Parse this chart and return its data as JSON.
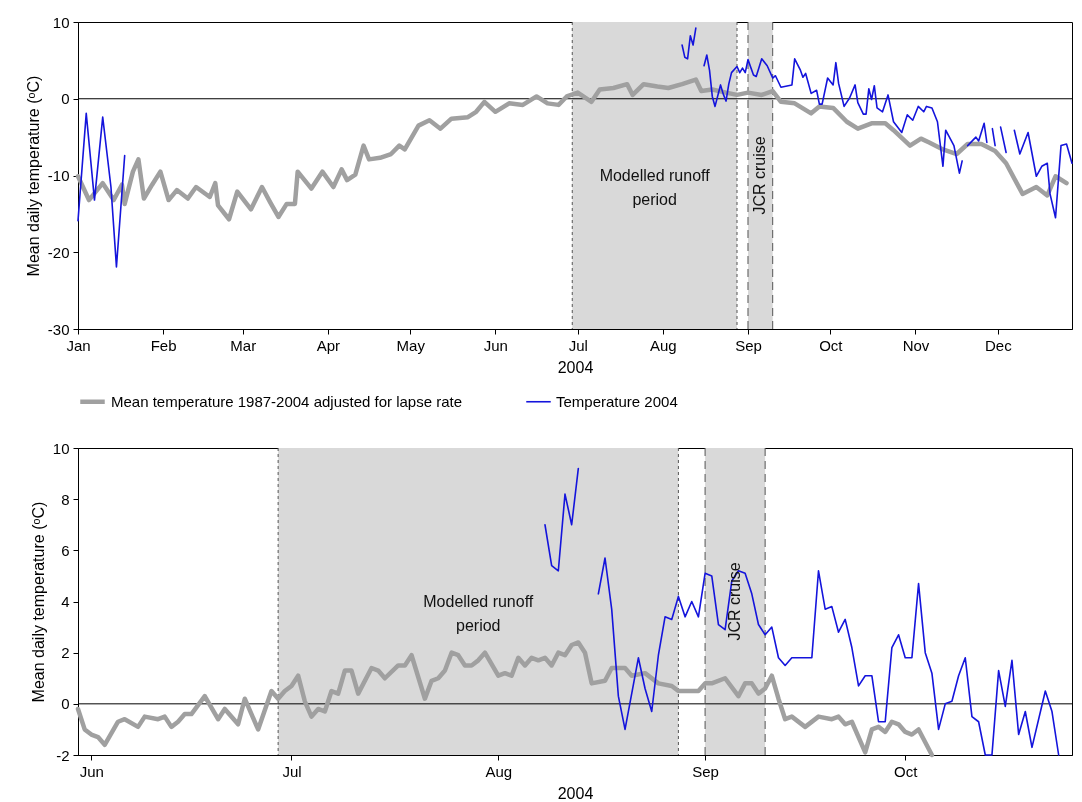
{
  "chart_data": [
    {
      "type": "line",
      "xlabel": "2004",
      "ylabel": "Mean daily temperature (ᵒC)",
      "xlim": [
        "2004-01-01",
        "2004-12-28"
      ],
      "ylim": [
        -30,
        10
      ],
      "yticks": [
        -30,
        -20,
        -10,
        0,
        10
      ],
      "xticks": [
        {
          "value": "2004-01-01",
          "label": "Jan"
        },
        {
          "value": "2004-02-01",
          "label": "Feb"
        },
        {
          "value": "2004-03-01",
          "label": "Mar"
        },
        {
          "value": "2004-04-01",
          "label": "Apr"
        },
        {
          "value": "2004-05-01",
          "label": "May"
        },
        {
          "value": "2004-06-01",
          "label": "Jun"
        },
        {
          "value": "2004-07-01",
          "label": "Jul"
        },
        {
          "value": "2004-08-01",
          "label": "Aug"
        },
        {
          "value": "2004-09-01",
          "label": "Sep"
        },
        {
          "value": "2004-10-01",
          "label": "Oct"
        },
        {
          "value": "2004-11-01",
          "label": "Nov"
        },
        {
          "value": "2004-12-01",
          "label": "Dec"
        }
      ],
      "legend": "bottom",
      "grid": false,
      "marker": "none",
      "line_style": "solid",
      "series": [
        {
          "name": "Mean temperature 1987-2004 adjusted for lapse rate",
          "color": "#a0a0a0",
          "x": [
            "2004-01-01",
            "2004-01-05",
            "2004-01-10",
            "2004-01-14",
            "2004-01-17",
            "2004-01-18",
            "2004-01-21",
            "2004-01-23",
            "2004-01-25",
            "2004-01-28",
            "2004-01-31",
            "2004-02-03",
            "2004-02-06",
            "2004-02-10",
            "2004-02-13",
            "2004-02-18",
            "2004-02-20",
            "2004-02-21",
            "2004-02-25",
            "2004-02-28",
            "2004-03-04",
            "2004-03-08",
            "2004-03-11",
            "2004-03-14",
            "2004-03-17",
            "2004-03-20",
            "2004-03-21",
            "2004-03-26",
            "2004-03-30",
            "2004-04-03",
            "2004-04-06",
            "2004-04-08",
            "2004-04-11",
            "2004-04-14",
            "2004-04-16",
            "2004-04-20",
            "2004-04-24",
            "2004-04-27",
            "2004-04-29",
            "2004-05-04",
            "2004-05-08",
            "2004-05-12",
            "2004-05-16",
            "2004-05-22",
            "2004-05-25",
            "2004-05-28",
            "2004-06-01",
            "2004-06-06",
            "2004-06-11",
            "2004-06-16",
            "2004-06-20",
            "2004-06-24",
            "2004-06-27",
            "2004-07-01",
            "2004-07-06",
            "2004-07-09",
            "2004-07-14",
            "2004-07-19",
            "2004-07-21",
            "2004-07-25",
            "2004-07-30",
            "2004-08-03",
            "2004-08-08",
            "2004-08-13",
            "2004-08-15",
            "2004-08-19",
            "2004-08-24",
            "2004-08-28",
            "2004-09-01",
            "2004-09-06",
            "2004-09-10",
            "2004-09-13",
            "2004-09-18",
            "2004-09-24",
            "2004-09-27",
            "2004-10-02",
            "2004-10-07",
            "2004-10-11",
            "2004-10-16",
            "2004-10-21",
            "2004-10-24",
            "2004-10-30",
            "2004-11-03",
            "2004-11-06",
            "2004-11-11",
            "2004-11-16",
            "2004-11-20",
            "2004-11-25",
            "2004-11-30",
            "2004-12-04",
            "2004-12-10",
            "2004-12-15",
            "2004-12-19",
            "2004-12-22",
            "2004-12-26"
          ],
          "values": [
            -10.1,
            -13.2,
            -11,
            -13.2,
            -11.2,
            -13.7,
            -9.5,
            -7.9,
            -13,
            -11.2,
            -9.5,
            -13.2,
            -11.9,
            -13,
            -11.5,
            -12.8,
            -11,
            -13.9,
            -15.7,
            -12.1,
            -14.4,
            -11.5,
            -13.5,
            -15.4,
            -13.7,
            -13.7,
            -9.5,
            -11.7,
            -9.5,
            -11.5,
            -9.2,
            -10.6,
            -9.9,
            -6.1,
            -7.9,
            -7.7,
            -7.2,
            -6.1,
            -6.6,
            -3.5,
            -2.8,
            -3.9,
            -2.6,
            -2.4,
            -1.7,
            -0.4,
            -1.7,
            -0.6,
            -0.8,
            0.3,
            -0.6,
            -0.8,
            0.3,
            0.8,
            -0.4,
            1.2,
            1.4,
            1.9,
            0.5,
            1.9,
            1.6,
            1.4,
            1.9,
            2.5,
            1.0,
            1.2,
            0.8,
            0.5,
            0.8,
            0.5,
            1.0,
            -0.4,
            -0.6,
            -1.9,
            -1.0,
            -1.2,
            -3.0,
            -3.9,
            -3.2,
            -3.2,
            -4.1,
            -6.1,
            -5.2,
            -5.7,
            -6.6,
            -7.2,
            -5.9,
            -5.9,
            -6.8,
            -8.4,
            -12.4,
            -11.5,
            -12.6,
            -10.1,
            -11.0
          ]
        },
        {
          "name": "Temperature 2004",
          "color": "#1414dc",
          "x": [
            "2004-01-01",
            "2004-01-04",
            "2004-01-07",
            "2004-01-10",
            "2004-01-13",
            "2004-01-15",
            "2004-01-18",
            "2004-01-19",
            "2004-08-08",
            "2004-08-09",
            "2004-08-10",
            "2004-08-11",
            "2004-08-12",
            "2004-08-13",
            "2004-08-14",
            "2004-08-16",
            "2004-08-17",
            "2004-08-18",
            "2004-08-19",
            "2004-08-20",
            "2004-08-22",
            "2004-08-23",
            "2004-08-24",
            "2004-08-25",
            "2004-08-26",
            "2004-08-28",
            "2004-08-29",
            "2004-08-30",
            "2004-08-31",
            "2004-09-01",
            "2004-09-03",
            "2004-09-04",
            "2004-09-06",
            "2004-09-08",
            "2004-09-10",
            "2004-09-11",
            "2004-09-13",
            "2004-09-17",
            "2004-09-18",
            "2004-09-20",
            "2004-09-21",
            "2004-09-22",
            "2004-09-24",
            "2004-09-26",
            "2004-09-27",
            "2004-09-28",
            "2004-09-30",
            "2004-10-02",
            "2004-10-03",
            "2004-10-04",
            "2004-10-06",
            "2004-10-08",
            "2004-10-10",
            "2004-10-11",
            "2004-10-13",
            "2004-10-14",
            "2004-10-15",
            "2004-10-16",
            "2004-10-17",
            "2004-10-18",
            "2004-10-20",
            "2004-10-22",
            "2004-10-24",
            "2004-10-27",
            "2004-10-29",
            "2004-10-31",
            "2004-11-02",
            "2004-11-04",
            "2004-11-05",
            "2004-11-07",
            "2004-11-09",
            "2004-11-11",
            "2004-11-12",
            "2004-11-15",
            "2004-11-17",
            "2004-11-18",
            "2004-11-19",
            "2004-11-20",
            "2004-11-23",
            "2004-11-24",
            "2004-11-26",
            "2004-11-27",
            "2004-11-28",
            "2004-11-29",
            "2004-11-30",
            "2004-12-01",
            "2004-12-02",
            "2004-12-04",
            "2004-12-05",
            "2004-12-07",
            "2004-12-09",
            "2004-12-12",
            "2004-12-15",
            "2004-12-17",
            "2004-12-19",
            "2004-12-20",
            "2004-12-22",
            "2004-12-24",
            "2004-12-26",
            "2004-12-28"
          ],
          "values": [
            -15.9,
            -1.9,
            -13.2,
            -2.4,
            -11.5,
            -21.9,
            -7.4,
            null,
            7.0,
            5.4,
            5.2,
            8.2,
            7.0,
            9.2,
            null,
            4.3,
            5.7,
            3.7,
            0.3,
            -1.0,
            1.8,
            0.6,
            -0.3,
            1.9,
            3.4,
            4.2,
            3.4,
            4.0,
            3.4,
            5.1,
            3.1,
            2.9,
            5.2,
            4.3,
            2.7,
            3.0,
            1.5,
            1.8,
            5.2,
            3.8,
            2.8,
            3.3,
            0.7,
            1.1,
            -0.7,
            -0.7,
            2.7,
            1.8,
            4.7,
            2.0,
            -1.0,
            0.1,
            1.8,
            -0.5,
            -2.0,
            -2.0,
            1.3,
            -0.1,
            1.7,
            -1.2,
            -1.7,
            0.5,
            -3.0,
            -4.4,
            -2.1,
            -2.8,
            -1.0,
            -1.7,
            -1.0,
            -1.2,
            -3.0,
            -8.8,
            -4.1,
            -6.1,
            -9.7,
            -8.1,
            null,
            -6.1,
            -5.0,
            -5.5,
            -3.2,
            -5.7,
            null,
            -3.9,
            -6.1,
            null,
            -3.7,
            -7.0,
            null,
            -4.1,
            -7.2,
            -4.4,
            -10.1,
            -8.8,
            -8.4,
            -12.4,
            -15.5,
            -6.1,
            -5.9,
            -8.4
          ]
        }
      ],
      "bands": [
        {
          "axis": "x",
          "from": "2004-06-29",
          "to": "2004-08-28",
          "color": "#d9d9d9",
          "label": "Modelled runoff period"
        },
        {
          "axis": "x",
          "from": "2004-09-01",
          "to": "2004-09-10",
          "color": "#d9d9d9",
          "label": "JCR cruise"
        }
      ],
      "ref_lines": [
        {
          "axis": "x",
          "value": "2004-06-29",
          "line_style": "dotted",
          "color": "#555555"
        },
        {
          "axis": "x",
          "value": "2004-08-28",
          "line_style": "dotted",
          "color": "#555555"
        },
        {
          "axis": "x",
          "value": "2004-09-01",
          "line_style": "dashed",
          "color": "#555555"
        },
        {
          "axis": "x",
          "value": "2004-09-10",
          "line_style": "dashed",
          "color": "#555555"
        },
        {
          "axis": "y",
          "value": 0,
          "line_style": "solid",
          "color": "#000000"
        }
      ]
    },
    {
      "type": "line",
      "xlabel": "2004",
      "ylabel": "Mean daily temperature (ᵒC)",
      "xlim": [
        "2004-05-30",
        "2004-10-26"
      ],
      "ylim": [
        -2,
        10
      ],
      "yticks": [
        -2,
        0,
        2,
        4,
        6,
        8,
        10
      ],
      "xticks": [
        {
          "value": "2004-06-01",
          "label": "Jun"
        },
        {
          "value": "2004-07-01",
          "label": "Jul"
        },
        {
          "value": "2004-08-01",
          "label": "Aug"
        },
        {
          "value": "2004-09-01",
          "label": "Sep"
        },
        {
          "value": "2004-10-01",
          "label": "Oct"
        }
      ],
      "grid": false,
      "marker": "none",
      "line_style": "solid",
      "series": [
        {
          "color": "#a0a0a0",
          "x": [
            "2004-05-30",
            "2004-05-31",
            "2004-06-01",
            "2004-06-02",
            "2004-06-03",
            "2004-06-05",
            "2004-06-06",
            "2004-06-08",
            "2004-06-09",
            "2004-06-11",
            "2004-06-12",
            "2004-06-13",
            "2004-06-14",
            "2004-06-15",
            "2004-06-16",
            "2004-06-18",
            "2004-06-20",
            "2004-06-21",
            "2004-06-23",
            "2004-06-24",
            "2004-06-26",
            "2004-06-28",
            "2004-06-29",
            "2004-06-30",
            "2004-07-01",
            "2004-07-02",
            "2004-07-03",
            "2004-07-04",
            "2004-07-05",
            "2004-07-06",
            "2004-07-07",
            "2004-07-08",
            "2004-07-09",
            "2004-07-10",
            "2004-07-11",
            "2004-07-13",
            "2004-07-14",
            "2004-07-15",
            "2004-07-17",
            "2004-07-18",
            "2004-07-19",
            "2004-07-21",
            "2004-07-22",
            "2004-07-23",
            "2004-07-24",
            "2004-07-25",
            "2004-07-26",
            "2004-07-27",
            "2004-07-28",
            "2004-07-29",
            "2004-07-30",
            "2004-08-01",
            "2004-08-02",
            "2004-08-03",
            "2004-08-04",
            "2004-08-05",
            "2004-08-06",
            "2004-08-07",
            "2004-08-08",
            "2004-08-09",
            "2004-08-10",
            "2004-08-11",
            "2004-08-12",
            "2004-08-13",
            "2004-08-14",
            "2004-08-15",
            "2004-08-17",
            "2004-08-18",
            "2004-08-20",
            "2004-08-21",
            "2004-08-23",
            "2004-08-25",
            "2004-08-27",
            "2004-08-28",
            "2004-08-31",
            "2004-09-01",
            "2004-09-02",
            "2004-09-04",
            "2004-09-06",
            "2004-09-07",
            "2004-09-08",
            "2004-09-09",
            "2004-09-10",
            "2004-09-11",
            "2004-09-12",
            "2004-09-13",
            "2004-09-14",
            "2004-09-16",
            "2004-09-18",
            "2004-09-20",
            "2004-09-21",
            "2004-09-22",
            "2004-09-23",
            "2004-09-25",
            "2004-09-26",
            "2004-09-27",
            "2004-09-28",
            "2004-09-29",
            "2004-09-30",
            "2004-10-01",
            "2004-10-02",
            "2004-10-03",
            "2004-10-04",
            "2004-10-05"
          ],
          "values": [
            -0.2,
            -1.0,
            -1.2,
            -1.3,
            -1.6,
            -0.7,
            -0.6,
            -0.9,
            -0.5,
            -0.6,
            -0.5,
            -0.9,
            -0.7,
            -0.4,
            -0.4,
            0.3,
            -0.6,
            -0.2,
            -0.8,
            0.2,
            -1.0,
            0.5,
            0.2,
            0.5,
            0.7,
            1.1,
            0.1,
            -0.5,
            -0.2,
            -0.3,
            0.5,
            0.4,
            1.3,
            1.3,
            0.4,
            1.4,
            1.3,
            1.0,
            1.5,
            1.5,
            1.9,
            0.2,
            0.9,
            1.0,
            1.3,
            2.0,
            1.9,
            1.5,
            1.5,
            1.7,
            2.0,
            1.1,
            1.2,
            1.1,
            1.8,
            1.5,
            1.8,
            1.7,
            1.8,
            1.5,
            2.0,
            1.9,
            2.3,
            2.4,
            2.0,
            0.8,
            0.9,
            1.4,
            1.4,
            1.1,
            1.2,
            0.8,
            0.7,
            0.5,
            0.5,
            0.8,
            0.8,
            1.0,
            0.3,
            0.8,
            0.8,
            0.4,
            0.6,
            1.1,
            0.2,
            -0.6,
            -0.5,
            -0.9,
            -0.5,
            -0.6,
            -0.5,
            -0.8,
            -0.7,
            -1.9,
            -1.0,
            -0.9,
            -1.1,
            -0.7,
            -0.8,
            -1.1,
            -1.2,
            -1.0,
            -1.5,
            -2.0
          ]
        },
        {
          "color": "#1414dc",
          "x": [
            "2004-08-08",
            "2004-08-09",
            "2004-08-10",
            "2004-08-11",
            "2004-08-12",
            "2004-08-13",
            "2004-08-14",
            "2004-08-16",
            "2004-08-17",
            "2004-08-18",
            "2004-08-19",
            "2004-08-20",
            "2004-08-22",
            "2004-08-23",
            "2004-08-24",
            "2004-08-25",
            "2004-08-26",
            "2004-08-27",
            "2004-08-28",
            "2004-08-29",
            "2004-08-30",
            "2004-08-31",
            "2004-09-01",
            "2004-09-02",
            "2004-09-03",
            "2004-09-04",
            "2004-09-05",
            "2004-09-06",
            "2004-09-07",
            "2004-09-08",
            "2004-09-09",
            "2004-09-10",
            "2004-09-11",
            "2004-09-12",
            "2004-09-13",
            "2004-09-14",
            "2004-09-16",
            "2004-09-17",
            "2004-09-18",
            "2004-09-19",
            "2004-09-20",
            "2004-09-21",
            "2004-09-22",
            "2004-09-23",
            "2004-09-24",
            "2004-09-25",
            "2004-09-26",
            "2004-09-27",
            "2004-09-28",
            "2004-09-29",
            "2004-09-30",
            "2004-10-01",
            "2004-10-02",
            "2004-10-03",
            "2004-10-04",
            "2004-10-05",
            "2004-10-06",
            "2004-10-07",
            "2004-10-08",
            "2004-10-09",
            "2004-10-10",
            "2004-10-11",
            "2004-10-12",
            "2004-10-13",
            "2004-10-14",
            "2004-10-15",
            "2004-10-16",
            "2004-10-17",
            "2004-10-18",
            "2004-10-19",
            "2004-10-20",
            "2004-10-22",
            "2004-10-23",
            "2004-10-24"
          ],
          "values": [
            7.0,
            5.4,
            5.2,
            8.2,
            7.0,
            9.2,
            null,
            4.3,
            5.7,
            3.7,
            0.3,
            -1.0,
            1.8,
            0.6,
            -0.3,
            1.9,
            3.4,
            3.3,
            4.2,
            3.4,
            4.0,
            3.4,
            5.1,
            5.0,
            3.1,
            2.9,
            4.8,
            5.2,
            5.1,
            4.3,
            3.1,
            2.7,
            3.0,
            1.8,
            1.5,
            1.8,
            1.8,
            1.8,
            5.2,
            3.7,
            3.8,
            2.8,
            3.3,
            2.2,
            0.7,
            1.1,
            1.1,
            -0.7,
            -0.7,
            2.2,
            2.7,
            1.8,
            1.8,
            4.7,
            2.0,
            1.2,
            -1.0,
            0.0,
            0.1,
            1.1,
            1.8,
            -0.5,
            -0.7,
            -2.0,
            -2.0,
            1.3,
            -0.1,
            1.7,
            -1.2,
            -0.3,
            -1.7,
            0.5,
            -0.3,
            -2.0
          ]
        }
      ],
      "bands": [
        {
          "axis": "x",
          "from": "2004-06-29",
          "to": "2004-08-28",
          "color": "#d9d9d9",
          "label": "Modelled runoff period"
        },
        {
          "axis": "x",
          "from": "2004-09-01",
          "to": "2004-09-10",
          "color": "#d9d9d9",
          "label": "JCR cruise"
        }
      ],
      "ref_lines": [
        {
          "axis": "x",
          "value": "2004-06-29",
          "line_style": "dotted",
          "color": "#555555"
        },
        {
          "axis": "x",
          "value": "2004-08-28",
          "line_style": "dotted",
          "color": "#555555"
        },
        {
          "axis": "x",
          "value": "2004-09-01",
          "line_style": "dashed",
          "color": "#555555"
        },
        {
          "axis": "x",
          "value": "2004-09-10",
          "line_style": "dashed",
          "color": "#555555"
        },
        {
          "axis": "y",
          "value": 0,
          "line_style": "solid",
          "color": "#000000"
        }
      ]
    }
  ]
}
